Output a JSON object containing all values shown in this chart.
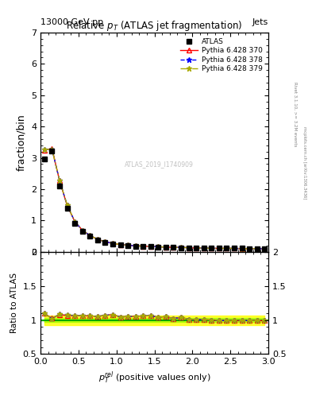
{
  "title": "Relative $p_T$ (ATLAS jet fragmentation)",
  "header_left": "13000 GeV pp",
  "header_right": "Jets",
  "ylabel_main": "fraction/bin",
  "ylabel_ratio": "Ratio to ATLAS",
  "xlabel": "$p_{T}^{rel}$ (positive values only)",
  "watermark": "ATLAS_2019_I1740909",
  "right_label": "Rivet 3.1.10, >= 3.2M events",
  "right_label2": "mcplots.cern.ch [arXiv:1306.3436]",
  "ylim_main": [
    0,
    7
  ],
  "ylim_ratio": [
    0.5,
    2.0
  ],
  "xlim": [
    0,
    3.0
  ],
  "x_data": [
    0.05,
    0.15,
    0.25,
    0.35,
    0.45,
    0.55,
    0.65,
    0.75,
    0.85,
    0.95,
    1.05,
    1.15,
    1.25,
    1.35,
    1.45,
    1.55,
    1.65,
    1.75,
    1.85,
    1.95,
    2.05,
    2.15,
    2.25,
    2.35,
    2.45,
    2.55,
    2.65,
    2.75,
    2.85,
    2.95
  ],
  "atlas_y": [
    2.97,
    3.22,
    2.1,
    1.39,
    0.91,
    0.65,
    0.49,
    0.38,
    0.3,
    0.25,
    0.22,
    0.2,
    0.18,
    0.17,
    0.16,
    0.15,
    0.14,
    0.14,
    0.13,
    0.13,
    0.12,
    0.12,
    0.12,
    0.11,
    0.11,
    0.11,
    0.11,
    0.1,
    0.1,
    0.1
  ],
  "py370_y": [
    3.25,
    3.3,
    2.27,
    1.48,
    0.97,
    0.69,
    0.52,
    0.4,
    0.32,
    0.27,
    0.23,
    0.21,
    0.19,
    0.18,
    0.17,
    0.16,
    0.15,
    0.14,
    0.14,
    0.13,
    0.12,
    0.12,
    0.11,
    0.11,
    0.11,
    0.11,
    0.1,
    0.1,
    0.1,
    0.1
  ],
  "py378_y": [
    3.26,
    3.28,
    2.28,
    1.49,
    0.97,
    0.69,
    0.52,
    0.4,
    0.32,
    0.27,
    0.23,
    0.21,
    0.19,
    0.18,
    0.17,
    0.16,
    0.15,
    0.14,
    0.14,
    0.13,
    0.12,
    0.12,
    0.11,
    0.11,
    0.11,
    0.11,
    0.1,
    0.1,
    0.1,
    0.1
  ],
  "py379_y": [
    3.26,
    3.28,
    2.28,
    1.5,
    0.97,
    0.69,
    0.52,
    0.4,
    0.32,
    0.27,
    0.23,
    0.21,
    0.19,
    0.18,
    0.17,
    0.16,
    0.15,
    0.14,
    0.14,
    0.13,
    0.12,
    0.12,
    0.11,
    0.11,
    0.11,
    0.11,
    0.1,
    0.1,
    0.1,
    0.1
  ],
  "py370_ratio": [
    1.095,
    1.025,
    1.081,
    1.065,
    1.066,
    1.062,
    1.061,
    1.053,
    1.067,
    1.08,
    1.045,
    1.05,
    1.056,
    1.059,
    1.063,
    1.04,
    1.05,
    1.02,
    1.04,
    1.01,
    1.008,
    1.005,
    1.0,
    0.995,
    0.99,
    0.99,
    0.99,
    0.992,
    0.99,
    0.99
  ],
  "py378_ratio": [
    1.098,
    1.019,
    1.086,
    1.072,
    1.066,
    1.062,
    1.061,
    1.053,
    1.067,
    1.08,
    1.045,
    1.05,
    1.056,
    1.059,
    1.063,
    1.04,
    1.05,
    1.02,
    1.04,
    1.01,
    1.008,
    1.005,
    1.0,
    0.995,
    0.99,
    0.99,
    0.99,
    0.992,
    0.99,
    0.99
  ],
  "py379_ratio": [
    1.098,
    1.019,
    1.086,
    1.079,
    1.066,
    1.062,
    1.061,
    1.053,
    1.067,
    1.08,
    1.045,
    1.05,
    1.056,
    1.059,
    1.063,
    1.04,
    1.05,
    1.02,
    1.04,
    1.01,
    1.008,
    1.005,
    1.0,
    0.995,
    0.99,
    0.99,
    0.99,
    0.992,
    0.99,
    0.99
  ],
  "atlas_color": "#000000",
  "py370_color": "#ff0000",
  "py378_color": "#0000ff",
  "py379_color": "#aaaa00",
  "band_color_yellow": "#ffff00",
  "band_color_green": "#aaff00",
  "ref_line_color": "#00aa00"
}
